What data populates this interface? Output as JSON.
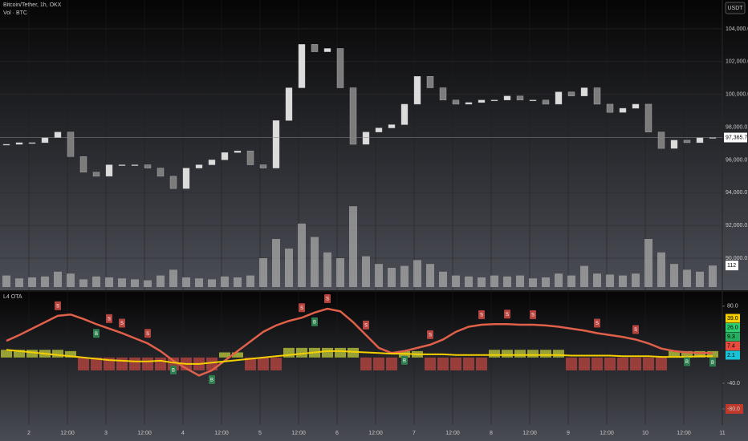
{
  "header": {
    "symbol": "Bitcoin/Tether, 1h, OKX",
    "volume_label": "Vol · BTC",
    "currency": "USDT"
  },
  "chart_data": [
    {
      "type": "candlestick",
      "x": [
        2,
        6,
        10,
        14,
        18,
        22,
        26,
        30,
        34,
        38,
        42,
        46,
        50,
        54,
        58,
        62,
        66,
        70,
        74,
        78,
        82,
        86,
        90,
        94,
        98,
        102,
        106,
        110,
        114,
        118,
        122,
        126,
        130,
        134,
        138,
        142,
        146,
        150,
        154,
        158,
        162,
        166,
        170,
        174,
        178,
        182,
        186,
        190,
        194,
        198,
        202,
        206,
        210,
        214,
        218,
        222
      ],
      "values": [
        96950,
        97050,
        97050,
        97350,
        97700,
        96200,
        95250,
        95000,
        95700,
        95700,
        95700,
        95500,
        95000,
        94250,
        95500,
        95700,
        96000,
        96450,
        96550,
        95700,
        95500,
        98400,
        100400,
        103050,
        102600,
        102800,
        100400,
        96950,
        97700,
        97950,
        98150,
        99400,
        101100,
        100400,
        99650,
        99400,
        99500,
        99650,
        99650,
        99900,
        99650,
        99650,
        99400,
        100150,
        99900,
        100400,
        99400,
        98900,
        99150,
        99400,
        97700,
        96700,
        97200,
        97050,
        97350,
        97365.7
      ],
      "color_up": "#dcdcdc",
      "color_down": "#7c7c7c",
      "xlim": [
        0,
        225
      ],
      "ylim": [
        88140,
        105760
      ],
      "yticks": [
        {
          "value": 90000,
          "label": "90,000.0"
        },
        {
          "value": 92000,
          "label": "92,000.0"
        },
        {
          "value": 94000,
          "label": "94,000.0"
        },
        {
          "value": 96000,
          "label": "96,000.0"
        },
        {
          "value": 98000,
          "label": "98,000.0"
        },
        {
          "value": 100000,
          "label": "100,000.0"
        },
        {
          "value": 102000,
          "label": "102,000.0"
        },
        {
          "value": 104000,
          "label": "104,000.0"
        }
      ],
      "xticks": [
        {
          "value": 9,
          "label": "2"
        },
        {
          "value": 21,
          "label": "12:00"
        },
        {
          "value": 33,
          "label": "3"
        },
        {
          "value": 45,
          "label": "12:00"
        },
        {
          "value": 57,
          "label": "4"
        },
        {
          "value": 69,
          "label": "12:00"
        },
        {
          "value": 81,
          "label": "5"
        },
        {
          "value": 93,
          "label": "12:00"
        },
        {
          "value": 105,
          "label": "6"
        },
        {
          "value": 117,
          "label": "12:00"
        },
        {
          "value": 129,
          "label": "7"
        },
        {
          "value": 141,
          "label": "12:00"
        },
        {
          "value": 153,
          "label": "8"
        },
        {
          "value": 165,
          "label": "12:00"
        },
        {
          "value": 177,
          "label": "9"
        },
        {
          "value": 189,
          "label": "12:00"
        },
        {
          "value": 201,
          "label": "10"
        },
        {
          "value": 213,
          "label": "12:00"
        },
        {
          "value": 225,
          "label": "11"
        }
      ],
      "last_price": {
        "value": 97365.7,
        "label": "97,365.7"
      },
      "volume": {
        "values": [
          60,
          45,
          50,
          55,
          80,
          70,
          40,
          55,
          50,
          45,
          40,
          35,
          60,
          90,
          50,
          45,
          40,
          55,
          50,
          60,
          150,
          250,
          200,
          330,
          260,
          180,
          150,
          420,
          160,
          120,
          100,
          110,
          140,
          120,
          80,
          60,
          55,
          50,
          60,
          55,
          60,
          45,
          50,
          70,
          60,
          110,
          70,
          65,
          60,
          70,
          250,
          180,
          120,
          90,
          80,
          112
        ],
        "ylim": [
          0,
          1500
        ],
        "color": "#a8a8a8",
        "last": 112
      }
    },
    {
      "type": "line",
      "title": "L4 OTA",
      "x": [
        2,
        6,
        10,
        14,
        18,
        22,
        26,
        30,
        34,
        38,
        42,
        46,
        50,
        54,
        58,
        62,
        66,
        70,
        74,
        78,
        82,
        86,
        90,
        94,
        98,
        102,
        106,
        110,
        114,
        118,
        122,
        126,
        130,
        134,
        138,
        142,
        146,
        150,
        154,
        158,
        162,
        166,
        170,
        174,
        178,
        182,
        186,
        190,
        194,
        198,
        202,
        206,
        210,
        214,
        218,
        222
      ],
      "xlim": [
        0,
        225
      ],
      "ylim": [
        -105,
        101
      ],
      "yticks": [
        {
          "value": 80,
          "label": "80.0"
        },
        {
          "value": -40,
          "label": "-40.0"
        },
        {
          "value": -80,
          "label": "-80.0"
        }
      ],
      "series": [
        {
          "color": "#e0604a",
          "values": [
            26,
            35,
            45,
            55,
            65,
            67,
            60,
            52,
            45,
            38,
            30,
            22,
            10,
            -5,
            -17,
            -28,
            -20,
            -5,
            10,
            25,
            40,
            50,
            57,
            62,
            70,
            76,
            72,
            55,
            35,
            15,
            7,
            10,
            15,
            20,
            28,
            40,
            48,
            51,
            52,
            52,
            51,
            51,
            50,
            48,
            45,
            42,
            38,
            35,
            32,
            28,
            22,
            14,
            10,
            8,
            7,
            7
          ]
        },
        {
          "color": "#f5d000",
          "values": [
            12,
            10,
            8,
            6,
            4,
            2,
            0,
            -2,
            -4,
            -5,
            -6,
            -6,
            -5,
            -8,
            -10,
            -10,
            -8,
            -6,
            -4,
            -2,
            0,
            2,
            4,
            6,
            8,
            10,
            10,
            9,
            8,
            7,
            6,
            6,
            5,
            5,
            5,
            4,
            4,
            4,
            4,
            4,
            4,
            4,
            4,
            4,
            3,
            3,
            3,
            3,
            2,
            2,
            2,
            1,
            1,
            1,
            2,
            2
          ]
        }
      ],
      "histogram": {
        "values": [
          12,
          12,
          12,
          12,
          12,
          10,
          -20,
          -20,
          -20,
          -20,
          -20,
          -20,
          -20,
          -20,
          -20,
          -20,
          -20,
          8,
          8,
          -20,
          -20,
          -20,
          15,
          15,
          15,
          15,
          15,
          15,
          -20,
          -20,
          -20,
          10,
          10,
          -20,
          -20,
          -20,
          -20,
          -20,
          12,
          12,
          12,
          12,
          12,
          12,
          -20,
          -20,
          -20,
          -20,
          -20,
          -20,
          -20,
          -20,
          10,
          10,
          10,
          10
        ],
        "color_pos": "#b8c23a",
        "color_neg": "#b5443f"
      },
      "current_values": [
        {
          "value": 39,
          "label": "39.0",
          "color": "#f5d000"
        },
        {
          "value": 26,
          "label": "26.0",
          "color": "#2ecc71"
        },
        {
          "value": 9.3,
          "label": "9.3",
          "color": "#27ae60"
        },
        {
          "value": 7.4,
          "label": "7.4",
          "color": "#e74c3c"
        },
        {
          "value": 2.1,
          "label": "2.1",
          "color": "#17c3d6"
        }
      ],
      "signals": [
        {
          "x": 18,
          "label": "S"
        },
        {
          "x": 30,
          "label": "B"
        },
        {
          "x": 34,
          "label": "S"
        },
        {
          "x": 38,
          "label": "S"
        },
        {
          "x": 46,
          "label": "S"
        },
        {
          "x": 54,
          "label": "B"
        },
        {
          "x": 66,
          "label": "B"
        },
        {
          "x": 94,
          "label": "S"
        },
        {
          "x": 98,
          "label": "B"
        },
        {
          "x": 102,
          "label": "S"
        },
        {
          "x": 114,
          "label": "S"
        },
        {
          "x": 126,
          "label": "B"
        },
        {
          "x": 134,
          "label": "S"
        },
        {
          "x": 150,
          "label": "S"
        },
        {
          "x": 158,
          "label": "S"
        },
        {
          "x": 166,
          "label": "S"
        },
        {
          "x": 186,
          "label": "S"
        },
        {
          "x": 198,
          "label": "S"
        },
        {
          "x": 214,
          "label": "B"
        },
        {
          "x": 222,
          "label": "B"
        }
      ]
    }
  ]
}
